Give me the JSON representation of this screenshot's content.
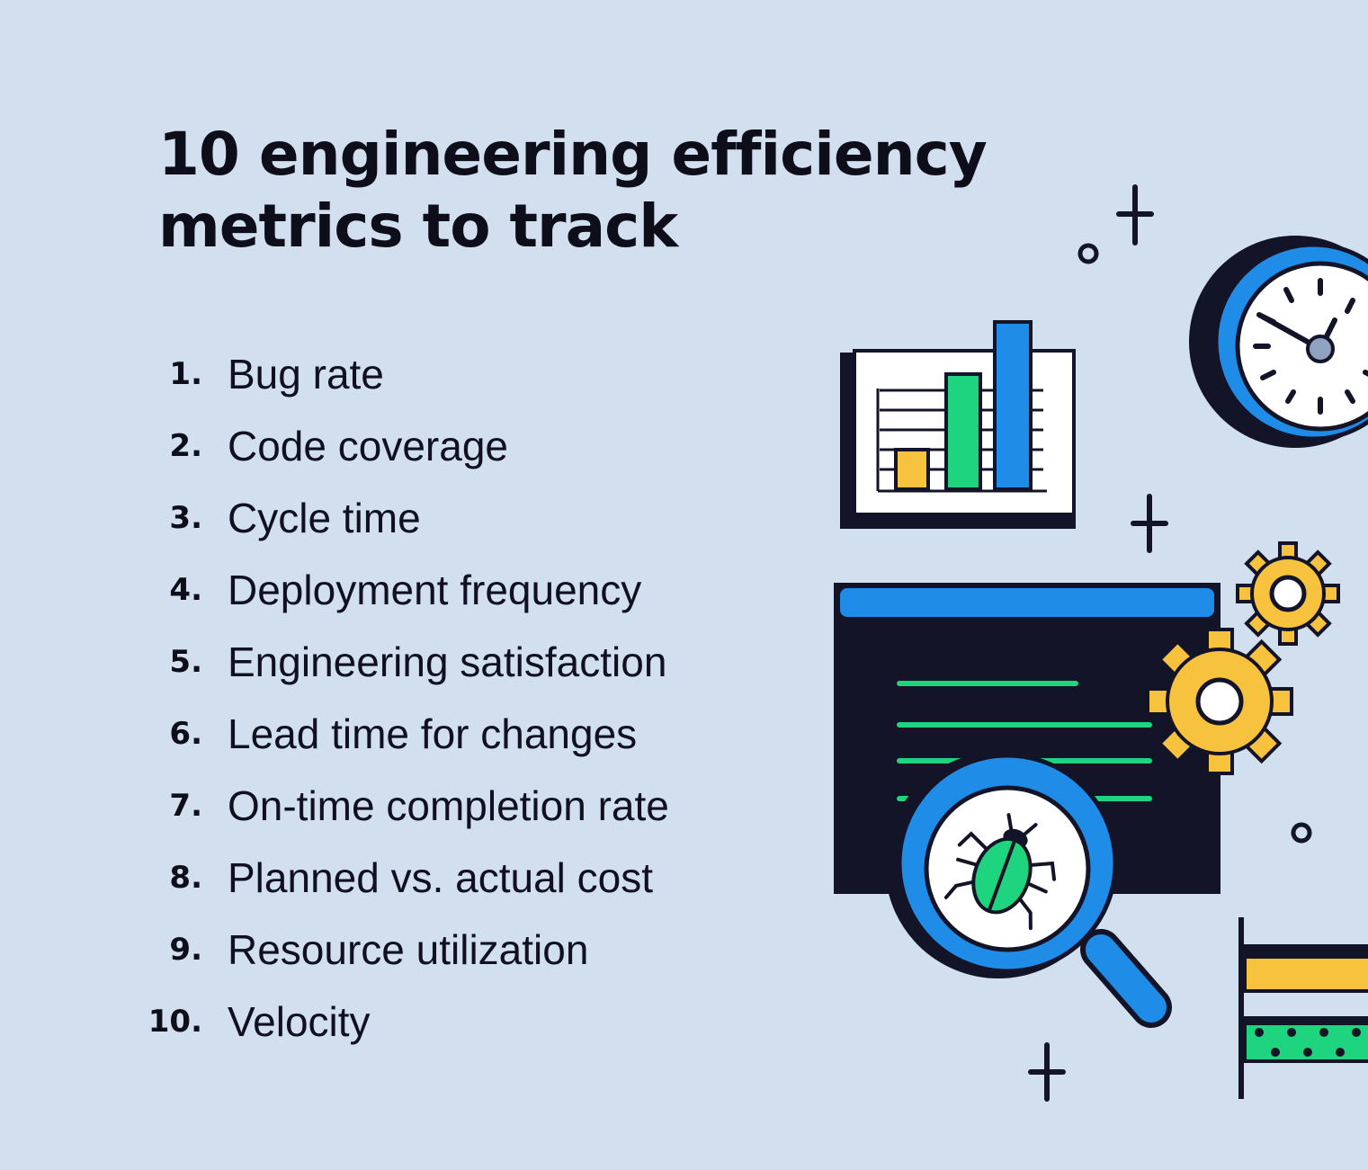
{
  "title": {
    "line1": "10 engineering efficiency",
    "line2": "metrics to track"
  },
  "metrics": [
    {
      "number": "1.",
      "label": "Bug rate"
    },
    {
      "number": "2.",
      "label": "Code coverage"
    },
    {
      "number": "3.",
      "label": "Cycle time"
    },
    {
      "number": "4.",
      "label": "Deployment frequency"
    },
    {
      "number": "5.",
      "label": "Engineering satisfaction"
    },
    {
      "number": "6.",
      "label": "Lead time for changes"
    },
    {
      "number": "7.",
      "label": "On-time completion rate"
    },
    {
      "number": "8.",
      "label": "Planned vs. actual cost"
    },
    {
      "number": "9.",
      "label": "Resource utilization"
    },
    {
      "number": "10.",
      "label": "Velocity"
    }
  ],
  "colors": {
    "background": "#d1dfee",
    "navy": "#141428",
    "blue": "#1f8de8",
    "green": "#1fd47e",
    "yellow": "#f7c23e",
    "slate": "#8fa2c0"
  },
  "icons": [
    "bar-chart-icon",
    "clock-icon",
    "gear-icon",
    "code-window-icon",
    "magnifier-icon",
    "bug-icon",
    "stacked-bars-icon",
    "sparkle-icon"
  ]
}
